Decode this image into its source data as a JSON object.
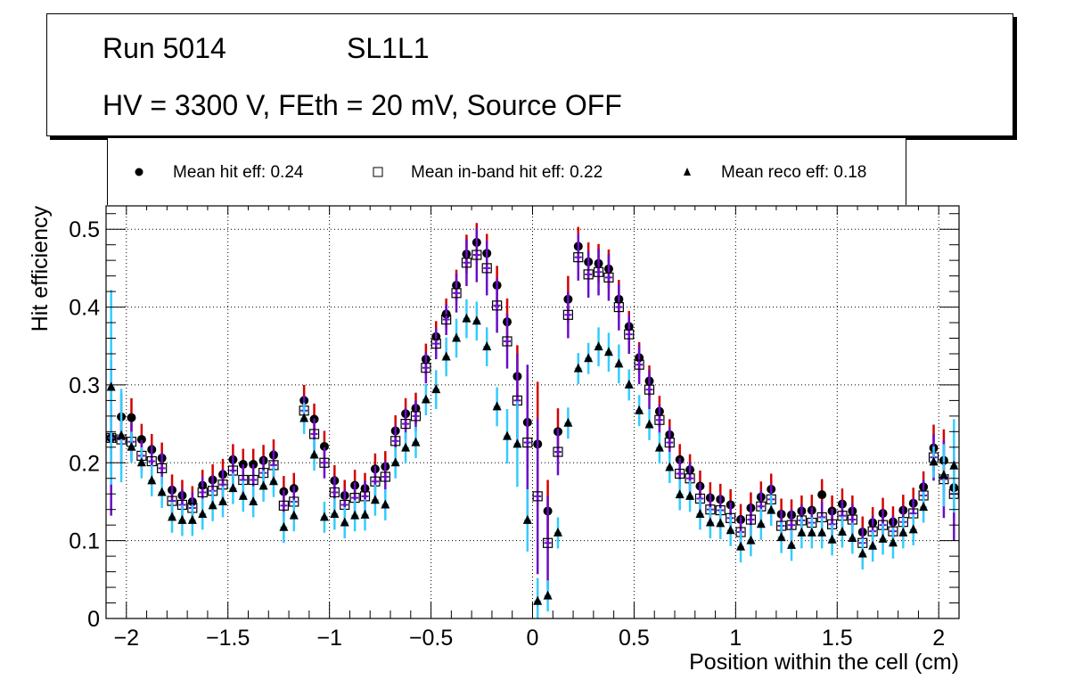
{
  "header": {
    "run": "Run 5014",
    "layer": "SL1L1",
    "conditions": "HV = 3300 V, FEth = 20 mV, Source OFF"
  },
  "legend": [
    {
      "label": "Mean hit  eff: 0.24",
      "marker": "filled-circle"
    },
    {
      "label": "Mean in-band hit eff: 0.22",
      "marker": "open-square"
    },
    {
      "label": "Mean reco eff: 0.18",
      "marker": "filled-triangle"
    }
  ],
  "chart_data": {
    "type": "scatter",
    "title": "",
    "xlabel": "Position within the cell (cm)",
    "ylabel": "Hit efficiency",
    "xlim": [
      -2.1,
      2.1
    ],
    "ylim": [
      0,
      0.53
    ],
    "grid": true,
    "legend_position": "top",
    "xticks": [
      -2,
      -1.5,
      -1,
      -0.5,
      0,
      0.5,
      1,
      1.5,
      2
    ],
    "xtick_labels": [
      "−2",
      "−1.5",
      "−1",
      "−0.5",
      "0",
      "0.5",
      "1",
      "1.5",
      "2"
    ],
    "yticks": [
      0,
      0.1,
      0.2,
      0.3,
      0.4,
      0.5
    ],
    "ytick_labels": [
      "0",
      "0.1",
      "0.2",
      "0.3",
      "0.4",
      "0.5"
    ],
    "x_bin_width": 0.05,
    "x_start": -2.075,
    "series": [
      {
        "name": "Mean hit  eff: 0.24",
        "marker": "filled-circle",
        "error_color": "#d40000",
        "values": [
          0.232,
          0.259,
          0.258,
          0.23,
          0.217,
          0.206,
          0.165,
          0.158,
          0.15,
          0.171,
          0.178,
          0.185,
          0.204,
          0.198,
          0.198,
          0.203,
          0.21,
          0.163,
          0.167,
          0.28,
          0.256,
          0.221,
          0.177,
          0.158,
          0.171,
          0.167,
          0.192,
          0.195,
          0.241,
          0.263,
          0.27,
          0.333,
          0.362,
          0.391,
          0.428,
          0.468,
          0.483,
          0.469,
          0.428,
          0.381,
          0.311,
          0.252,
          0.224,
          0.138,
          0.24,
          0.41,
          0.478,
          0.458,
          0.456,
          0.449,
          0.41,
          0.375,
          0.335,
          0.305,
          0.266,
          0.236,
          0.204,
          0.191,
          0.17,
          0.155,
          0.153,
          0.146,
          0.127,
          0.142,
          0.156,
          0.166,
          0.134,
          0.133,
          0.138,
          0.139,
          0.159,
          0.138,
          0.147,
          0.138,
          0.111,
          0.123,
          0.135,
          0.124,
          0.139,
          0.148,
          0.169,
          0.219,
          0.203,
          0.168
        ],
        "errors": [
          0.03,
          0.03,
          0.025,
          0.02,
          0.02,
          0.02,
          0.02,
          0.02,
          0.02,
          0.02,
          0.02,
          0.02,
          0.02,
          0.02,
          0.02,
          0.02,
          0.02,
          0.02,
          0.02,
          0.02,
          0.02,
          0.02,
          0.02,
          0.02,
          0.02,
          0.02,
          0.02,
          0.02,
          0.02,
          0.02,
          0.02,
          0.02,
          0.02,
          0.02,
          0.02,
          0.025,
          0.025,
          0.025,
          0.025,
          0.03,
          0.04,
          0.06,
          0.08,
          0.04,
          0.03,
          0.03,
          0.025,
          0.025,
          0.025,
          0.025,
          0.025,
          0.02,
          0.02,
          0.02,
          0.02,
          0.02,
          0.02,
          0.02,
          0.02,
          0.02,
          0.02,
          0.02,
          0.02,
          0.02,
          0.02,
          0.02,
          0.02,
          0.02,
          0.02,
          0.02,
          0.02,
          0.02,
          0.02,
          0.02,
          0.02,
          0.02,
          0.02,
          0.02,
          0.02,
          0.02,
          0.02,
          0.03,
          0.04,
          0.04
        ]
      },
      {
        "name": "Mean in-band hit eff: 0.22",
        "marker": "open-square",
        "error_color": "#6a0dc8",
        "values": [
          0.232,
          0.23,
          0.227,
          0.209,
          0.202,
          0.193,
          0.151,
          0.146,
          0.142,
          0.162,
          0.164,
          0.172,
          0.19,
          0.178,
          0.178,
          0.187,
          0.197,
          0.145,
          0.15,
          0.267,
          0.237,
          0.2,
          0.162,
          0.146,
          0.155,
          0.157,
          0.176,
          0.182,
          0.228,
          0.25,
          0.26,
          0.322,
          0.353,
          0.384,
          0.418,
          0.457,
          0.467,
          0.45,
          0.402,
          0.356,
          0.28,
          0.226,
          0.157,
          0.097,
          0.214,
          0.39,
          0.464,
          0.442,
          0.445,
          0.438,
          0.4,
          0.365,
          0.326,
          0.294,
          0.255,
          0.226,
          0.186,
          0.18,
          0.154,
          0.14,
          0.139,
          0.129,
          0.111,
          0.127,
          0.144,
          0.153,
          0.119,
          0.12,
          0.126,
          0.123,
          0.13,
          0.121,
          0.132,
          0.127,
          0.097,
          0.112,
          0.12,
          0.112,
          0.124,
          0.135,
          0.158,
          0.207,
          0.179,
          0.16
        ],
        "errors": [
          0.1,
          0.03,
          0.025,
          0.02,
          0.02,
          0.02,
          0.02,
          0.02,
          0.02,
          0.02,
          0.02,
          0.02,
          0.02,
          0.02,
          0.02,
          0.02,
          0.02,
          0.02,
          0.02,
          0.02,
          0.02,
          0.02,
          0.02,
          0.02,
          0.02,
          0.02,
          0.02,
          0.02,
          0.02,
          0.02,
          0.02,
          0.02,
          0.02,
          0.02,
          0.025,
          0.03,
          0.035,
          0.035,
          0.035,
          0.035,
          0.06,
          0.1,
          0.1,
          0.06,
          0.03,
          0.03,
          0.03,
          0.03,
          0.03,
          0.03,
          0.03,
          0.025,
          0.025,
          0.025,
          0.02,
          0.02,
          0.02,
          0.02,
          0.02,
          0.02,
          0.02,
          0.02,
          0.02,
          0.02,
          0.02,
          0.02,
          0.02,
          0.02,
          0.02,
          0.02,
          0.02,
          0.02,
          0.02,
          0.02,
          0.02,
          0.02,
          0.02,
          0.02,
          0.02,
          0.02,
          0.02,
          0.03,
          0.05,
          0.06
        ]
      },
      {
        "name": "Mean reco eff: 0.18",
        "marker": "filled-triangle",
        "error_color": "#33ccff",
        "values": [
          0.297,
          0.235,
          0.22,
          0.2,
          0.177,
          0.162,
          0.13,
          0.126,
          0.126,
          0.134,
          0.145,
          0.15,
          0.167,
          0.157,
          0.15,
          0.17,
          0.176,
          0.117,
          0.132,
          0.257,
          0.21,
          0.13,
          0.134,
          0.123,
          0.132,
          0.133,
          0.152,
          0.146,
          0.2,
          0.219,
          0.226,
          0.281,
          0.294,
          0.336,
          0.36,
          0.385,
          0.382,
          0.349,
          0.272,
          0.234,
          0.224,
          0.126,
          0.022,
          0.029,
          0.11,
          0.251,
          0.321,
          0.334,
          0.349,
          0.342,
          0.327,
          0.3,
          0.267,
          0.249,
          0.219,
          0.194,
          0.159,
          0.157,
          0.134,
          0.123,
          0.122,
          0.113,
          0.092,
          0.1,
          0.121,
          0.139,
          0.104,
          0.094,
          0.11,
          0.11,
          0.11,
          0.101,
          0.111,
          0.103,
          0.083,
          0.093,
          0.102,
          0.097,
          0.11,
          0.114,
          0.143,
          0.201,
          0.184,
          0.196
        ],
        "errors": [
          0.125,
          0.06,
          0.02,
          0.02,
          0.02,
          0.02,
          0.02,
          0.02,
          0.02,
          0.02,
          0.02,
          0.02,
          0.02,
          0.02,
          0.02,
          0.02,
          0.02,
          0.02,
          0.02,
          0.02,
          0.02,
          0.02,
          0.02,
          0.02,
          0.02,
          0.02,
          0.02,
          0.02,
          0.02,
          0.02,
          0.02,
          0.02,
          0.025,
          0.025,
          0.025,
          0.025,
          0.025,
          0.025,
          0.025,
          0.035,
          0.055,
          0.04,
          0.03,
          0.02,
          0.02,
          0.02,
          0.02,
          0.02,
          0.025,
          0.025,
          0.025,
          0.02,
          0.02,
          0.02,
          0.02,
          0.02,
          0.02,
          0.02,
          0.02,
          0.02,
          0.02,
          0.02,
          0.02,
          0.02,
          0.02,
          0.02,
          0.02,
          0.02,
          0.02,
          0.02,
          0.02,
          0.02,
          0.02,
          0.02,
          0.02,
          0.02,
          0.02,
          0.02,
          0.02,
          0.02,
          0.02,
          0.02,
          0.04,
          0.06
        ]
      }
    ]
  }
}
